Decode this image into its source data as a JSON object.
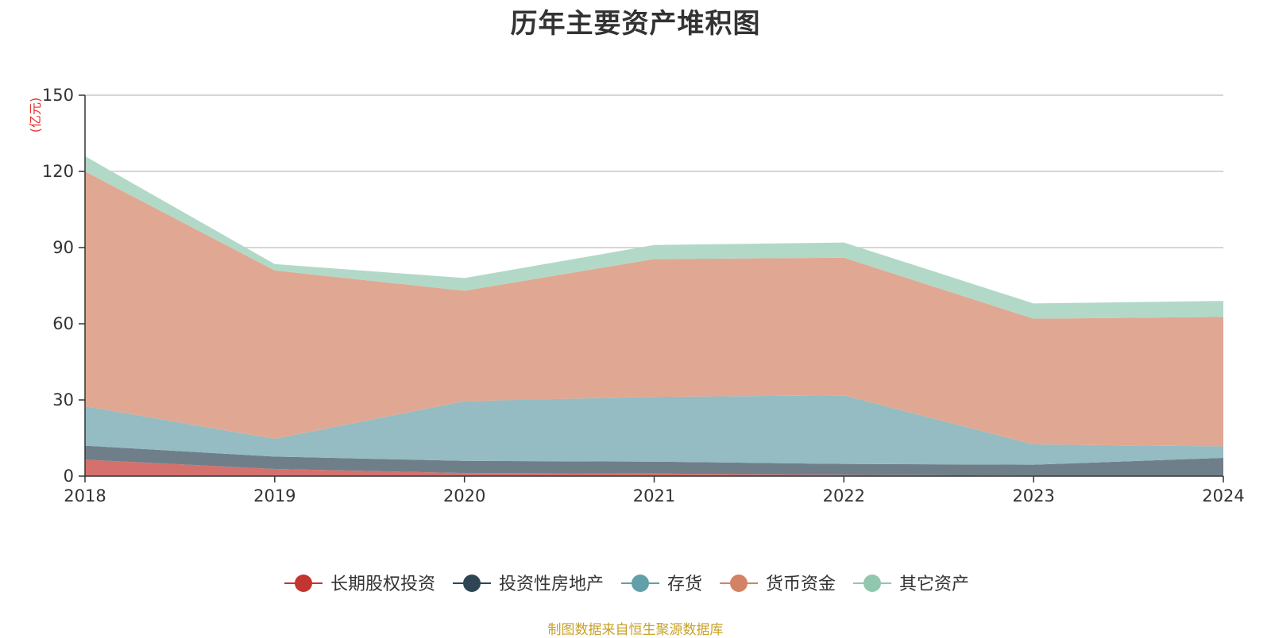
{
  "chart_data": {
    "type": "area",
    "stacked": true,
    "title": "历年主要资产堆积图",
    "unit": "(亿元)",
    "x": [
      "2018",
      "2019",
      "2020",
      "2021",
      "2022",
      "2023",
      "2024"
    ],
    "ylim": [
      0,
      150
    ],
    "yticks": [
      "0",
      "30",
      "60",
      "90",
      "120",
      "150"
    ],
    "ytick_values": [
      0,
      30,
      60,
      90,
      120,
      150
    ],
    "grid": true,
    "legend_position": "bottom-center",
    "series": [
      {
        "name": "长期股权投资",
        "color": "#c23531",
        "fill": "#d4716d",
        "values": [
          6.5,
          2.8,
          1.2,
          1.0,
          0.5,
          0.2,
          0.2
        ]
      },
      {
        "name": "投资性房地产",
        "color": "#2f4554",
        "fill": "#6f7f8a",
        "values": [
          5.5,
          4.9,
          4.8,
          4.7,
          4.3,
          4.3,
          7.0
        ]
      },
      {
        "name": "存货",
        "color": "#61a0a8",
        "fill": "#94bcc2",
        "values": [
          15.5,
          7.0,
          23.5,
          25.5,
          27.0,
          8.0,
          4.5
        ]
      },
      {
        "name": "货币资金",
        "color": "#d48265",
        "fill": "#e0a892",
        "values": [
          92.5,
          66.3,
          43.5,
          54.3,
          54.2,
          49.5,
          51.0
        ]
      },
      {
        "name": "其它资产",
        "color": "#91c7ae",
        "fill": "#b2d9c7",
        "values": [
          6.0,
          2.5,
          5.0,
          5.5,
          6.0,
          6.0,
          6.3
        ]
      }
    ]
  },
  "footer": {
    "source": "制图数据来自恒生聚源数据库"
  }
}
